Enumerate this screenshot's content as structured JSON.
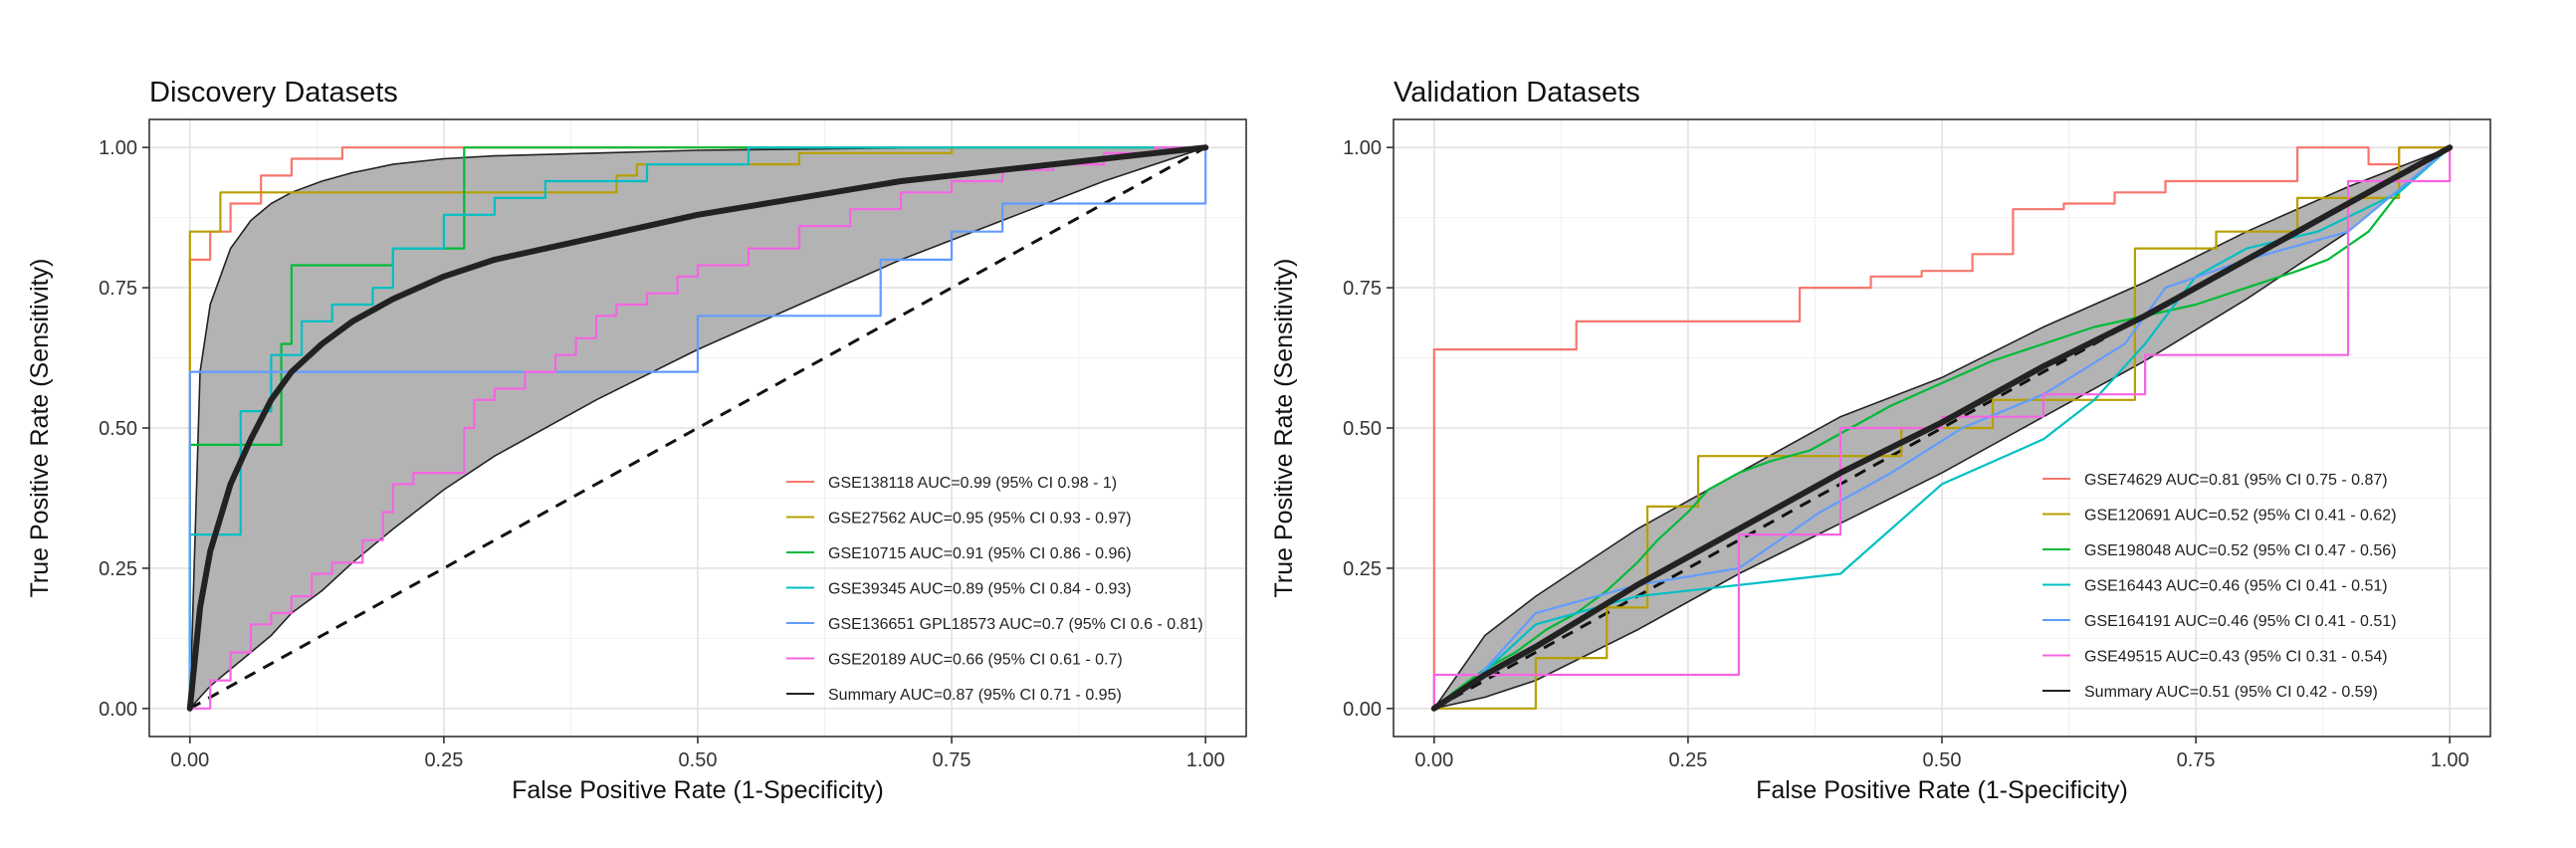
{
  "chart_data": [
    {
      "type": "line",
      "title": "Discovery Datasets",
      "xlabel": "False Positive Rate (1-Specificity)",
      "ylabel": "True Positive Rate (Sensitivity)",
      "xlim": [
        -0.04,
        1.04
      ],
      "ylim": [
        -0.05,
        1.05
      ],
      "x_ticks": [
        0,
        0.25,
        0.5,
        0.75,
        1
      ],
      "x_tick_labels": [
        "0.00",
        "0.25",
        "0.50",
        "0.75",
        "1.00"
      ],
      "y_ticks": [
        0,
        0.25,
        0.5,
        0.75,
        1
      ],
      "y_tick_labels": [
        "0.00",
        "0.25",
        "0.50",
        "0.75",
        "1.00"
      ],
      "grid": true,
      "legend_position": "bottom-right",
      "diagonal": true,
      "series": [
        {
          "name": "GSE138118 AUC=0.99 (95% CI 0.98 - 1)",
          "color": "#F8766D",
          "x": [
            0,
            0,
            0.02,
            0.02,
            0.04,
            0.04,
            0.07,
            0.07,
            0.1,
            0.1,
            0.15,
            0.15,
            1
          ],
          "y": [
            0,
            0.8,
            0.8,
            0.85,
            0.85,
            0.9,
            0.9,
            0.95,
            0.95,
            0.98,
            0.98,
            1,
            1
          ]
        },
        {
          "name": "GSE27562 AUC=0.95 (95% CI 0.93 - 0.97)",
          "color": "#B79F00",
          "x": [
            0,
            0,
            0.03,
            0.03,
            0.42,
            0.42,
            0.44,
            0.44,
            0.6,
            0.6,
            0.75,
            0.75,
            1
          ],
          "y": [
            0,
            0.85,
            0.85,
            0.92,
            0.92,
            0.95,
            0.95,
            0.97,
            0.97,
            0.99,
            0.99,
            1,
            1
          ]
        },
        {
          "name": "GSE10715 AUC=0.91 (95% CI 0.86 - 0.96)",
          "color": "#00BA38",
          "x": [
            0,
            0,
            0.09,
            0.09,
            0.1,
            0.1,
            0.2,
            0.2,
            0.27,
            0.27,
            1
          ],
          "y": [
            0,
            0.47,
            0.47,
            0.65,
            0.65,
            0.79,
            0.79,
            0.82,
            0.82,
            1,
            1
          ]
        },
        {
          "name": "GSE39345 AUC=0.89 (95% CI 0.84 - 0.93)",
          "color": "#00BFC4",
          "x": [
            0,
            0,
            0.05,
            0.05,
            0.08,
            0.08,
            0.11,
            0.11,
            0.14,
            0.14,
            0.18,
            0.18,
            0.2,
            0.2,
            0.25,
            0.25,
            0.3,
            0.3,
            0.35,
            0.35,
            0.45,
            0.45,
            0.55,
            0.55,
            1
          ],
          "y": [
            0,
            0.31,
            0.31,
            0.53,
            0.53,
            0.63,
            0.63,
            0.69,
            0.69,
            0.72,
            0.72,
            0.75,
            0.75,
            0.82,
            0.82,
            0.88,
            0.88,
            0.91,
            0.91,
            0.94,
            0.94,
            0.97,
            0.97,
            1,
            1
          ]
        },
        {
          "name": "GSE136651 GPL18573 AUC=0.7 (95% CI 0.6 - 0.81)",
          "color": "#619CFF",
          "x": [
            0,
            0,
            0.5,
            0.5,
            0.68,
            0.68,
            0.75,
            0.75,
            0.8,
            0.8,
            1,
            1
          ],
          "y": [
            0,
            0.6,
            0.6,
            0.7,
            0.7,
            0.8,
            0.8,
            0.85,
            0.85,
            0.9,
            0.9,
            1
          ]
        },
        {
          "name": "GSE20189 AUC=0.66 (95% CI 0.61 - 0.7)",
          "color": "#F564E3",
          "x": [
            0,
            0.02,
            0.02,
            0.04,
            0.04,
            0.06,
            0.06,
            0.08,
            0.08,
            0.1,
            0.1,
            0.12,
            0.12,
            0.14,
            0.14,
            0.17,
            0.17,
            0.19,
            0.19,
            0.2,
            0.2,
            0.22,
            0.22,
            0.27,
            0.27,
            0.28,
            0.28,
            0.3,
            0.3,
            0.33,
            0.33,
            0.36,
            0.36,
            0.38,
            0.38,
            0.4,
            0.4,
            0.42,
            0.42,
            0.45,
            0.45,
            0.48,
            0.48,
            0.5,
            0.5,
            0.55,
            0.55,
            0.6,
            0.6,
            0.65,
            0.65,
            0.7,
            0.7,
            0.75,
            0.75,
            0.8,
            0.8,
            0.85,
            0.85,
            0.9,
            0.9,
            0.95,
            0.95,
            1
          ],
          "y": [
            0,
            0,
            0.05,
            0.05,
            0.1,
            0.1,
            0.15,
            0.15,
            0.17,
            0.17,
            0.2,
            0.2,
            0.24,
            0.24,
            0.26,
            0.26,
            0.3,
            0.3,
            0.35,
            0.35,
            0.4,
            0.4,
            0.42,
            0.42,
            0.5,
            0.5,
            0.55,
            0.55,
            0.57,
            0.57,
            0.6,
            0.6,
            0.63,
            0.63,
            0.66,
            0.66,
            0.7,
            0.7,
            0.72,
            0.72,
            0.74,
            0.74,
            0.77,
            0.77,
            0.79,
            0.79,
            0.82,
            0.82,
            0.86,
            0.86,
            0.89,
            0.89,
            0.92,
            0.92,
            0.94,
            0.94,
            0.96,
            0.96,
            0.97,
            0.97,
            0.99,
            0.99,
            1,
            1
          ]
        },
        {
          "name": "Summary AUC=0.87 (95% CI 0.71 - 0.95)",
          "color": "#222222",
          "type": "summary",
          "x": [
            0,
            0.01,
            0.02,
            0.04,
            0.06,
            0.08,
            0.1,
            0.13,
            0.16,
            0.2,
            0.25,
            0.3,
            0.4,
            0.5,
            0.6,
            0.7,
            0.8,
            0.9,
            1
          ],
          "y": [
            0,
            0.18,
            0.28,
            0.4,
            0.48,
            0.55,
            0.6,
            0.65,
            0.69,
            0.73,
            0.77,
            0.8,
            0.84,
            0.88,
            0.91,
            0.94,
            0.96,
            0.98,
            1
          ],
          "ci_upper": [
            0,
            0.6,
            0.72,
            0.82,
            0.87,
            0.9,
            0.92,
            0.94,
            0.955,
            0.97,
            0.98,
            0.985,
            0.99,
            0.995,
            0.997,
            0.999,
            1,
            1,
            1
          ],
          "ci_lower": [
            0,
            0.02,
            0.04,
            0.07,
            0.1,
            0.13,
            0.17,
            0.21,
            0.26,
            0.32,
            0.39,
            0.45,
            0.55,
            0.64,
            0.72,
            0.8,
            0.87,
            0.94,
            1
          ]
        }
      ]
    },
    {
      "type": "line",
      "title": "Validation Datasets",
      "xlabel": "False Positive Rate (1-Specificity)",
      "ylabel": "True Positive Rate (Sensitivity)",
      "xlim": [
        -0.04,
        1.04
      ],
      "ylim": [
        -0.05,
        1.05
      ],
      "x_ticks": [
        0,
        0.25,
        0.5,
        0.75,
        1
      ],
      "x_tick_labels": [
        "0.00",
        "0.25",
        "0.50",
        "0.75",
        "1.00"
      ],
      "y_ticks": [
        0,
        0.25,
        0.5,
        0.75,
        1
      ],
      "y_tick_labels": [
        "0.00",
        "0.25",
        "0.50",
        "0.75",
        "1.00"
      ],
      "grid": true,
      "legend_position": "bottom-right",
      "diagonal": true,
      "series": [
        {
          "name": "GSE74629 AUC=0.81 (95% CI 0.75 - 0.87)",
          "color": "#F8766D",
          "x": [
            0,
            0,
            0.14,
            0.14,
            0.36,
            0.36,
            0.43,
            0.43,
            0.48,
            0.48,
            0.53,
            0.53,
            0.57,
            0.57,
            0.62,
            0.62,
            0.67,
            0.67,
            0.72,
            0.72,
            0.85,
            0.85,
            0.92,
            0.92,
            0.95,
            0.95,
            1
          ],
          "y": [
            0,
            0.64,
            0.64,
            0.69,
            0.69,
            0.75,
            0.75,
            0.77,
            0.77,
            0.78,
            0.78,
            0.81,
            0.81,
            0.89,
            0.89,
            0.9,
            0.9,
            0.92,
            0.92,
            0.94,
            0.94,
            1,
            1,
            0.97,
            0.97,
            1,
            1
          ]
        },
        {
          "name": "GSE120691 AUC=0.52 (95% CI 0.41 - 0.62)",
          "color": "#B79F00",
          "x": [
            0,
            0.1,
            0.1,
            0.17,
            0.17,
            0.21,
            0.21,
            0.26,
            0.26,
            0.46,
            0.46,
            0.55,
            0.55,
            0.69,
            0.69,
            0.77,
            0.77,
            0.85,
            0.85,
            0.95,
            0.95,
            1
          ],
          "y": [
            0,
            0,
            0.09,
            0.09,
            0.18,
            0.18,
            0.36,
            0.36,
            0.45,
            0.45,
            0.5,
            0.5,
            0.55,
            0.55,
            0.82,
            0.82,
            0.85,
            0.85,
            0.91,
            0.91,
            1,
            1
          ]
        },
        {
          "name": "GSE198048 AUC=0.52 (95% CI 0.47 - 0.56)",
          "color": "#00BA38",
          "x": [
            0,
            0.02,
            0.05,
            0.08,
            0.11,
            0.14,
            0.17,
            0.2,
            0.22,
            0.25,
            0.27,
            0.3,
            0.33,
            0.37,
            0.4,
            0.45,
            0.5,
            0.55,
            0.6,
            0.65,
            0.7,
            0.75,
            0.8,
            0.85,
            0.88,
            0.92,
            0.95,
            1
          ],
          "y": [
            0,
            0.03,
            0.07,
            0.1,
            0.14,
            0.17,
            0.21,
            0.26,
            0.3,
            0.35,
            0.39,
            0.42,
            0.44,
            0.46,
            0.49,
            0.54,
            0.58,
            0.62,
            0.65,
            0.68,
            0.7,
            0.72,
            0.75,
            0.78,
            0.8,
            0.85,
            0.92,
            1
          ]
        },
        {
          "name": "GSE16443 AUC=0.46 (95% CI 0.41 - 0.51)",
          "color": "#00BFC4",
          "x": [
            0,
            0.04,
            0.04,
            0.1,
            0.1,
            0.2,
            0.2,
            0.4,
            0.4,
            0.5,
            0.5,
            0.6,
            0.6,
            0.65,
            0.65,
            0.7,
            0.7,
            0.75,
            0.75,
            0.8,
            0.8,
            0.87,
            0.87,
            0.95,
            0.95,
            1
          ],
          "y": [
            0,
            0.05,
            0.05,
            0.15,
            0.15,
            0.2,
            0.2,
            0.24,
            0.24,
            0.4,
            0.4,
            0.48,
            0.48,
            0.55,
            0.55,
            0.65,
            0.65,
            0.77,
            0.77,
            0.82,
            0.82,
            0.85,
            0.85,
            0.92,
            0.92,
            1
          ]
        },
        {
          "name": "GSE164191 AUC=0.46 (95% CI 0.41 - 0.51)",
          "color": "#619CFF",
          "x": [
            0,
            0.04,
            0.04,
            0.1,
            0.1,
            0.2,
            0.2,
            0.3,
            0.3,
            0.38,
            0.38,
            0.45,
            0.45,
            0.52,
            0.52,
            0.6,
            0.6,
            0.68,
            0.68,
            0.72,
            0.72,
            0.8,
            0.8,
            0.9,
            0.9,
            1
          ],
          "y": [
            0,
            0.05,
            0.05,
            0.17,
            0.17,
            0.22,
            0.22,
            0.25,
            0.25,
            0.35,
            0.35,
            0.42,
            0.42,
            0.5,
            0.5,
            0.56,
            0.56,
            0.65,
            0.65,
            0.75,
            0.75,
            0.8,
            0.8,
            0.85,
            0.85,
            1
          ]
        },
        {
          "name": "GSE49515 AUC=0.43 (95% CI 0.31 - 0.54)",
          "color": "#F564E3",
          "x": [
            0,
            0,
            0.3,
            0.3,
            0.4,
            0.4,
            0.5,
            0.5,
            0.6,
            0.6,
            0.7,
            0.7,
            0.9,
            0.9,
            1,
            1
          ],
          "y": [
            0,
            0.06,
            0.06,
            0.31,
            0.31,
            0.5,
            0.5,
            0.52,
            0.52,
            0.56,
            0.56,
            0.63,
            0.63,
            0.94,
            0.94,
            1
          ]
        },
        {
          "name": "Summary AUC=0.51 (95% CI 0.42 - 0.59)",
          "color": "#222222",
          "type": "summary",
          "x": [
            0,
            0.05,
            0.1,
            0.2,
            0.3,
            0.4,
            0.5,
            0.6,
            0.7,
            0.8,
            0.9,
            1
          ],
          "y": [
            0,
            0.06,
            0.11,
            0.22,
            0.32,
            0.42,
            0.51,
            0.61,
            0.7,
            0.8,
            0.9,
            1
          ],
          "ci_upper": [
            0,
            0.13,
            0.2,
            0.32,
            0.42,
            0.52,
            0.59,
            0.68,
            0.76,
            0.85,
            0.93,
            1
          ],
          "ci_lower": [
            0,
            0.02,
            0.05,
            0.14,
            0.24,
            0.33,
            0.42,
            0.52,
            0.62,
            0.73,
            0.85,
            1
          ]
        }
      ]
    }
  ]
}
